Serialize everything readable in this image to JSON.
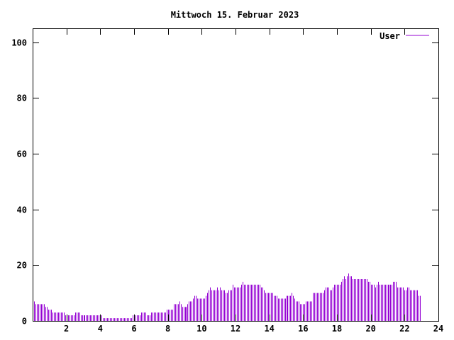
{
  "chart_data": {
    "type": "bar",
    "title": "Mittwoch 15. Februar 2023",
    "xlabel": "",
    "ylabel": "",
    "xlim": [
      0,
      24
    ],
    "ylim": [
      0,
      105
    ],
    "x_ticks": [
      2,
      4,
      6,
      8,
      10,
      12,
      14,
      16,
      18,
      20,
      22,
      24
    ],
    "y_ticks": [
      0,
      20,
      40,
      60,
      80,
      100
    ],
    "grid": false,
    "legend": "top-right",
    "bar_color": "#9400d3",
    "series": [
      {
        "name": "User",
        "x_step_minutes": 5,
        "values": [
          8,
          7,
          6,
          6,
          6,
          6,
          6,
          6,
          6,
          5,
          5,
          4,
          4,
          4,
          3,
          3,
          3,
          3,
          3,
          3,
          3,
          3,
          3,
          2,
          2,
          2,
          2,
          2,
          2,
          2,
          3,
          3,
          3,
          3,
          2,
          2,
          2,
          2,
          2,
          2,
          2,
          2,
          2,
          2,
          2,
          2,
          2,
          2,
          2,
          2,
          1,
          1,
          1,
          1,
          1,
          1,
          1,
          1,
          1,
          1,
          1,
          1,
          1,
          1,
          1,
          1,
          1,
          1,
          1,
          1,
          1,
          2,
          2,
          2,
          2,
          2,
          2,
          3,
          3,
          3,
          3,
          2,
          2,
          2,
          3,
          3,
          3,
          3,
          3,
          3,
          3,
          3,
          3,
          3,
          3,
          4,
          4,
          4,
          4,
          4,
          6,
          6,
          6,
          6,
          7,
          6,
          5,
          5,
          5,
          5,
          6,
          7,
          7,
          7,
          8,
          9,
          9,
          8,
          8,
          8,
          8,
          8,
          8,
          9,
          10,
          11,
          12,
          11,
          11,
          11,
          11,
          12,
          11,
          12,
          11,
          11,
          11,
          10,
          10,
          11,
          11,
          11,
          13,
          12,
          12,
          12,
          12,
          12,
          13,
          14,
          13,
          13,
          13,
          13,
          13,
          13,
          13,
          13,
          13,
          13,
          13,
          13,
          12,
          12,
          11,
          10,
          10,
          10,
          10,
          10,
          10,
          9,
          9,
          9,
          8,
          8,
          8,
          8,
          8,
          8,
          9,
          9,
          9,
          9,
          10,
          9,
          8,
          7,
          7,
          7,
          6,
          6,
          6,
          6,
          7,
          7,
          7,
          7,
          7,
          10,
          10,
          10,
          10,
          10,
          10,
          10,
          10,
          11,
          12,
          12,
          12,
          11,
          11,
          12,
          13,
          13,
          13,
          13,
          13,
          14,
          15,
          16,
          15,
          16,
          17,
          16,
          16,
          15,
          15,
          15,
          15,
          15,
          15,
          15,
          15,
          15,
          15,
          15,
          14,
          14,
          13,
          13,
          13,
          12,
          13,
          14,
          13,
          13,
          13,
          13,
          13,
          13,
          13,
          13,
          13,
          13,
          14,
          14,
          14,
          12,
          12,
          12,
          12,
          12,
          11,
          11,
          12,
          12,
          11,
          11,
          11,
          11,
          11,
          11,
          9,
          9
        ]
      }
    ]
  }
}
